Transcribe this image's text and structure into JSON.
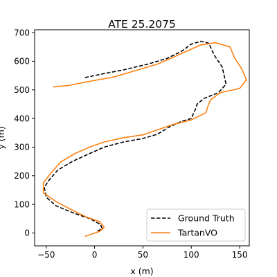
{
  "chart_data": {
    "type": "line",
    "title": "ATE 25.2075",
    "xlabel": "x (m)",
    "ylabel": "y (m)",
    "xlim": [
      -62,
      160
    ],
    "ylim": [
      -45,
      710
    ],
    "xticks": [
      -50,
      0,
      50,
      100,
      150
    ],
    "yticks": [
      0,
      100,
      200,
      300,
      400,
      500,
      600,
      700
    ],
    "grid": false,
    "legend_position": "lower-right",
    "series": [
      {
        "name": "Ground Truth",
        "color": "#000000",
        "dash": "dashed",
        "points": [
          [
            -10,
            543
          ],
          [
            10,
            557
          ],
          [
            30,
            570
          ],
          [
            55,
            590
          ],
          [
            75,
            610
          ],
          [
            90,
            635
          ],
          [
            100,
            660
          ],
          [
            110,
            670
          ],
          [
            118,
            663
          ],
          [
            124,
            620
          ],
          [
            132,
            580
          ],
          [
            136,
            520
          ],
          [
            128,
            490
          ],
          [
            113,
            470
          ],
          [
            106,
            450
          ],
          [
            104,
            430
          ],
          [
            100,
            400
          ],
          [
            90,
            390
          ],
          [
            77,
            370
          ],
          [
            65,
            345
          ],
          [
            50,
            330
          ],
          [
            30,
            318
          ],
          [
            10,
            300
          ],
          [
            -10,
            270
          ],
          [
            -23,
            250
          ],
          [
            -38,
            220
          ],
          [
            -47,
            185
          ],
          [
            -52,
            160
          ],
          [
            -50,
            125
          ],
          [
            -40,
            95
          ],
          [
            -22,
            70
          ],
          [
            -5,
            50
          ],
          [
            6,
            30
          ],
          [
            8,
            15
          ],
          [
            2,
            5
          ]
        ]
      },
      {
        "name": "TartanVO",
        "color": "#ff7f0e",
        "dash": "solid",
        "points": [
          [
            -43,
            510
          ],
          [
            -28,
            515
          ],
          [
            -5,
            530
          ],
          [
            20,
            545
          ],
          [
            45,
            570
          ],
          [
            65,
            590
          ],
          [
            80,
            612
          ],
          [
            95,
            635
          ],
          [
            110,
            657
          ],
          [
            125,
            665
          ],
          [
            140,
            650
          ],
          [
            145,
            610
          ],
          [
            152,
            575
          ],
          [
            157,
            535
          ],
          [
            150,
            505
          ],
          [
            130,
            490
          ],
          [
            120,
            465
          ],
          [
            118,
            450
          ],
          [
            115,
            420
          ],
          [
            100,
            395
          ],
          [
            80,
            378
          ],
          [
            50,
            343
          ],
          [
            30,
            333
          ],
          [
            10,
            318
          ],
          [
            -5,
            300
          ],
          [
            -20,
            278
          ],
          [
            -35,
            248
          ],
          [
            -45,
            210
          ],
          [
            -53,
            175
          ],
          [
            -53,
            140
          ],
          [
            -40,
            110
          ],
          [
            -25,
            83
          ],
          [
            -8,
            55
          ],
          [
            5,
            40
          ],
          [
            10,
            20
          ],
          [
            5,
            5
          ],
          [
            -10,
            -12
          ]
        ]
      }
    ]
  }
}
